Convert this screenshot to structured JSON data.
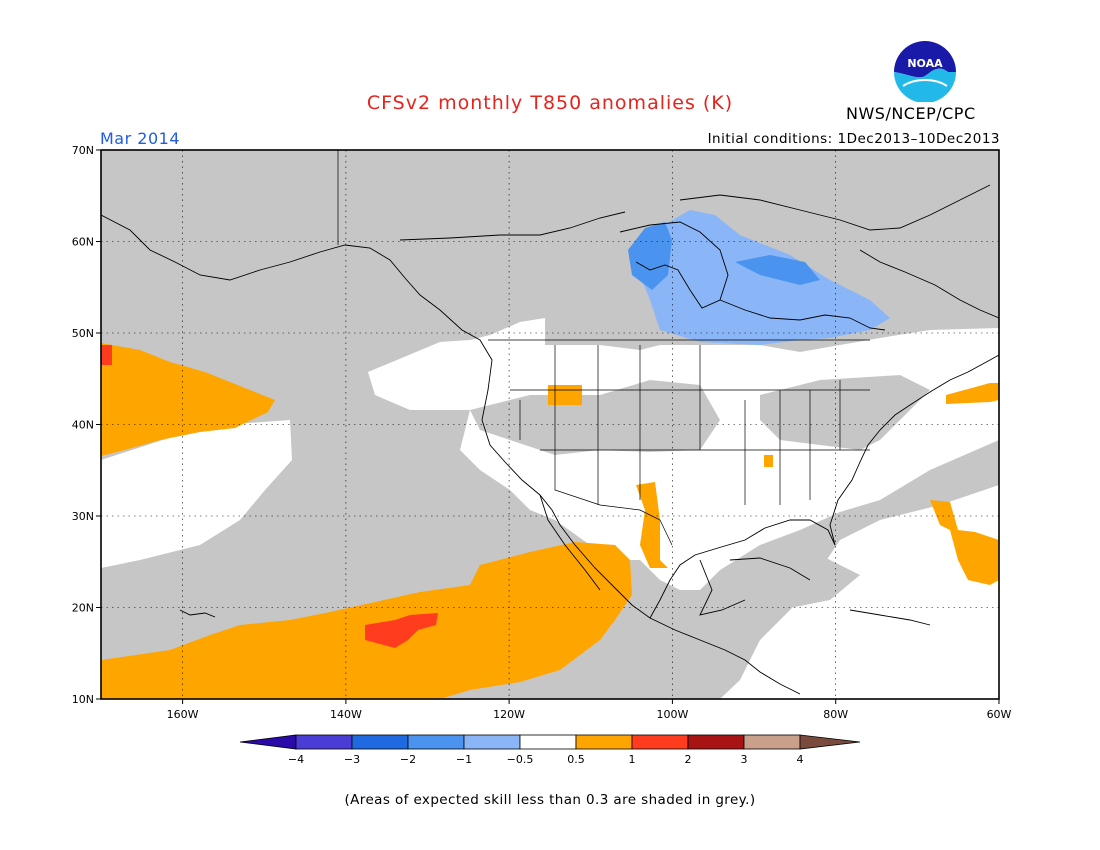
{
  "header": {
    "title": "CFSv2 monthly T850 anomalies (K)",
    "agency": "NWS/NCEP/CPC",
    "period": "Mar 2014",
    "initial_conditions": "Initial conditions: 1Dec2013–10Dec2013"
  },
  "logo": {
    "icon": "noaa-logo-icon",
    "text": "NOAA"
  },
  "map": {
    "projection": "lat-lon",
    "lon_range": [
      -170,
      -60
    ],
    "lat_range": [
      10,
      70
    ],
    "lat_labels": [
      "70N",
      "60N",
      "50N",
      "40N",
      "30N",
      "20N",
      "10N"
    ],
    "lon_labels": [
      "160W",
      "140W",
      "120W",
      "100W",
      "80W",
      "60W"
    ],
    "gridlines": "dotted",
    "colors": {
      "low_skill_grey": "#c6c6c6",
      "land_boundary": "#000000"
    },
    "anomaly_regions": [
      {
        "level": "-1 to -0.5",
        "color": "#8ab6f8",
        "area": "Hudson Bay / northern Quebec"
      },
      {
        "level": "-2 to -1",
        "color": "#4a93ee",
        "area": "west of Hudson Bay"
      },
      {
        "level": "0.5 to 1",
        "color": "#ffa500",
        "area": "eastern Pacific south of Mexico"
      },
      {
        "level": "0.5 to 1",
        "color": "#ffa500",
        "area": "Gulf of Alaska western edge"
      },
      {
        "level": "0.5 to 1",
        "color": "#ffa500",
        "area": "western Atlantic"
      },
      {
        "level": "1 to 2",
        "color": "#ff3c1e",
        "area": "tropical eastern Pacific patch"
      }
    ]
  },
  "colorbar": {
    "levels": [
      "−4",
      "−3",
      "−2",
      "−1",
      "−0.5",
      "0.5",
      "1",
      "2",
      "3",
      "4"
    ],
    "colors": [
      "#2a0aa8",
      "#4a3dd6",
      "#1f6ae0",
      "#4a93ee",
      "#8ab6f8",
      "#ffffff",
      "#ffa500",
      "#ff3c1e",
      "#a81414",
      "#c8a08c",
      "#7a4a3c"
    ]
  },
  "footnote": "(Areas of expected skill less than 0.3 are shaded in grey.)"
}
